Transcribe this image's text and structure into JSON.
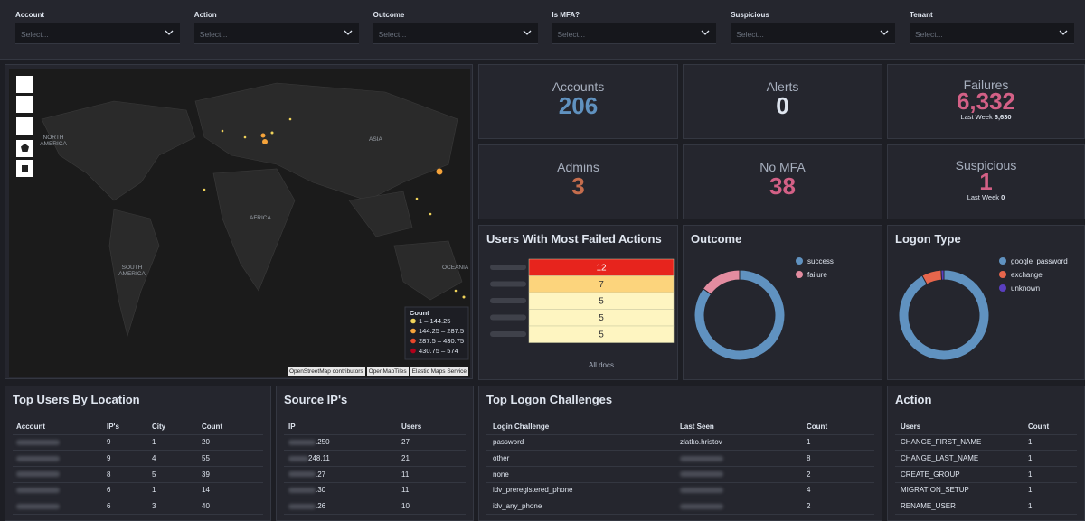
{
  "filters": [
    {
      "label": "Account",
      "placeholder": "Select..."
    },
    {
      "label": "Action",
      "placeholder": "Select..."
    },
    {
      "label": "Outcome",
      "placeholder": "Select..."
    },
    {
      "label": "Is MFA?",
      "placeholder": "Select..."
    },
    {
      "label": "Suspicious",
      "placeholder": "Select..."
    },
    {
      "label": "Tenant",
      "placeholder": "Select..."
    }
  ],
  "map": {
    "regions": [
      "NORTH AMERICA",
      "ASIA",
      "AFRICA",
      "SOUTH AMERICA",
      "OCEANIA"
    ],
    "legend": {
      "title": "Count",
      "items": [
        {
          "label": "1 – 144.25",
          "color": "#f0d35a"
        },
        {
          "label": "144.25 – 287.5",
          "color": "#f5a33a"
        },
        {
          "label": "287.5 – 430.75",
          "color": "#e8472b"
        },
        {
          "label": "430.75 – 574",
          "color": "#b3001b"
        }
      ]
    },
    "attribution": [
      "OpenStreetMap contributors",
      "OpenMapTiles",
      "Elastic Maps Service"
    ]
  },
  "metrics": [
    {
      "label": "Accounts",
      "value": 206,
      "color": "#6092c0"
    },
    {
      "label": "Alerts",
      "value": 0,
      "color": "#dfe5ef"
    },
    {
      "label": "Failures",
      "value": "6,332",
      "color": "#d36086",
      "note_label": "Last Week",
      "note_value": "6,630"
    },
    {
      "label": "Admins",
      "value": 3,
      "color": "#c56d4d"
    },
    {
      "label": "No MFA",
      "value": 38,
      "color": "#d36086"
    },
    {
      "label": "Suspicious",
      "value": 1,
      "color": "#d36086",
      "note_label": "Last Week",
      "note_value": 0
    }
  ],
  "failed_actions": {
    "title": "Users With Most Failed Actions",
    "values": [
      12,
      7,
      5,
      5,
      5
    ],
    "colors": [
      "#e7241d",
      "#fcd47c",
      "#fef5c1",
      "#fef5c1",
      "#fef5c1"
    ],
    "x_label": "All docs"
  },
  "outcome": {
    "title": "Outcome",
    "series": [
      {
        "name": "success",
        "value": 85,
        "color": "#6092c0"
      },
      {
        "name": "failure",
        "value": 15,
        "color": "#e38ca0"
      }
    ]
  },
  "logon_type": {
    "title": "Logon Type",
    "series": [
      {
        "name": "google_password",
        "value": 92,
        "color": "#6092c0"
      },
      {
        "name": "exchange",
        "value": 7,
        "color": "#e7664c"
      },
      {
        "name": "unknown",
        "value": 1,
        "color": "#5a3fc0"
      }
    ]
  },
  "top_users": {
    "title": "Top Users By Location",
    "columns": [
      "Account",
      "IP's",
      "City",
      "Count"
    ],
    "rows": [
      [
        null,
        9,
        1,
        20
      ],
      [
        null,
        9,
        4,
        55
      ],
      [
        null,
        8,
        5,
        39
      ],
      [
        null,
        6,
        1,
        14
      ],
      [
        null,
        6,
        3,
        40
      ]
    ]
  },
  "source_ips": {
    "title": "Source IP's",
    "columns": [
      "IP",
      "Users"
    ],
    "rows": [
      [
        ".250",
        27
      ],
      [
        "248.11",
        21
      ],
      [
        ".27",
        11
      ],
      [
        ".30",
        11
      ],
      [
        ".26",
        10
      ]
    ]
  },
  "logon_challenges": {
    "title": "Top Logon Challenges",
    "columns": [
      "Login Challenge",
      "Last Seen",
      "Count"
    ],
    "rows": [
      [
        "password",
        "zlatko.hristov",
        1
      ],
      [
        "other",
        null,
        8
      ],
      [
        "none",
        null,
        2
      ],
      [
        "idv_preregistered_phone",
        null,
        4
      ],
      [
        "idv_any_phone",
        null,
        2
      ]
    ]
  },
  "actions": {
    "title": "Action",
    "columns": [
      "Users",
      "Count"
    ],
    "rows": [
      [
        "CHANGE_FIRST_NAME",
        1
      ],
      [
        "CHANGE_LAST_NAME",
        1
      ],
      [
        "CREATE_GROUP",
        1
      ],
      [
        "MIGRATION_SETUP",
        1
      ],
      [
        "RENAME_USER",
        1
      ]
    ]
  }
}
